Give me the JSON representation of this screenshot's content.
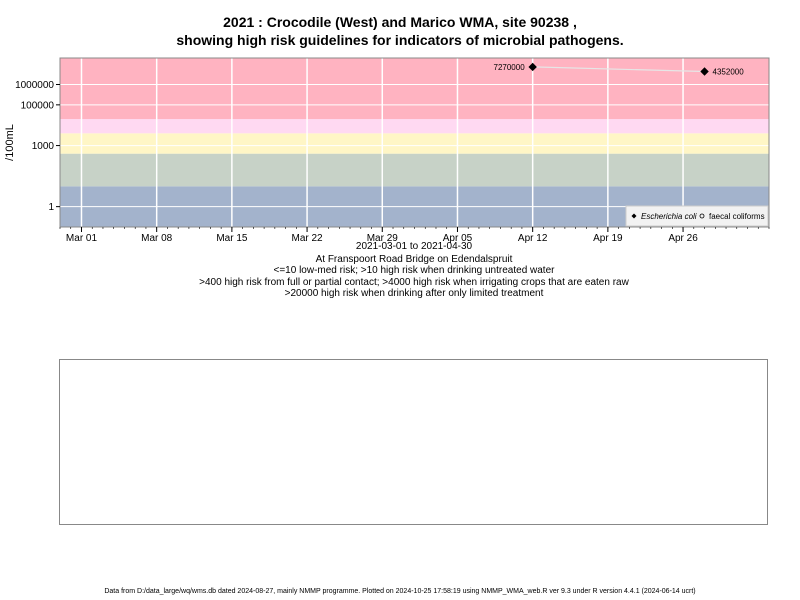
{
  "chart_data": {
    "type": "scatter",
    "title_line1": "2021 : Crocodile (West) and Marico WMA, site 90238 ,",
    "title_line2": "showing high risk guidelines for indicators of microbial pathogens.",
    "ylabel": "/100mL",
    "y_scale": "log10",
    "ylim": [
      0.1,
      20000000
    ],
    "y_ticks": [
      {
        "value": 1,
        "label": "1"
      },
      {
        "value": 1000,
        "label": "1000"
      },
      {
        "value": 100000,
        "label": "100000"
      },
      {
        "value": 1000000,
        "label": "1000000"
      }
    ],
    "xlim": [
      "2021-02-27",
      "2021-05-04"
    ],
    "x_ticks": [
      {
        "date": "2021-03-01",
        "label": "Mar 01"
      },
      {
        "date": "2021-03-08",
        "label": "Mar 08"
      },
      {
        "date": "2021-03-15",
        "label": "Mar 15"
      },
      {
        "date": "2021-03-22",
        "label": "Mar 22"
      },
      {
        "date": "2021-03-29",
        "label": "Mar 29"
      },
      {
        "date": "2021-04-05",
        "label": "Apr 05"
      },
      {
        "date": "2021-04-12",
        "label": "Apr 12"
      },
      {
        "date": "2021-04-19",
        "label": "Apr 19"
      },
      {
        "date": "2021-04-26",
        "label": "Apr 26"
      }
    ],
    "bands": [
      {
        "from": 0.1,
        "to": 10,
        "color": "#a3b3cc"
      },
      {
        "from": 10,
        "to": 400,
        "color": "#c7d2c7"
      },
      {
        "from": 400,
        "to": 4000,
        "color": "#fff6c6"
      },
      {
        "from": 4000,
        "to": 20000,
        "color": "#ffd9f2"
      },
      {
        "from": 20000,
        "to": 20000000,
        "color": "#ffb3c1"
      }
    ],
    "series": [
      {
        "name": "Escherichia coli",
        "marker": "diamond-filled",
        "color": "#000000",
        "points": [
          {
            "date": "2021-04-12",
            "value": 7270000,
            "label": "7270000"
          },
          {
            "date": "2021-04-28",
            "value": 4352000,
            "label": "4352000"
          }
        ]
      },
      {
        "name": "faecal coliforms",
        "marker": "circle-open",
        "color": "#000000",
        "points": []
      }
    ],
    "legend_position": "bottom-right",
    "grid": true,
    "x_range_label": "2021-03-01 to 2021-04-30",
    "site_label": "At Franspoort Road Bridge on Edendalspruit",
    "guidelines": [
      "<=10 low-med risk; >10 high risk when drinking untreated water",
      ">400 high risk from full or partial contact; >4000 high risk when irrigating crops that are eaten raw",
      ">20000 high risk when drinking after only limited treatment"
    ]
  },
  "footer": "Data from D:/data_large/wq/wms.db dated 2024-08-27, mainly NMMP programme. Plotted on 2024-10-25 17:58:19 using NMMP_WMA_web.R ver 9.3 under R version 4.4.1 (2024-06-14 ucrt)"
}
